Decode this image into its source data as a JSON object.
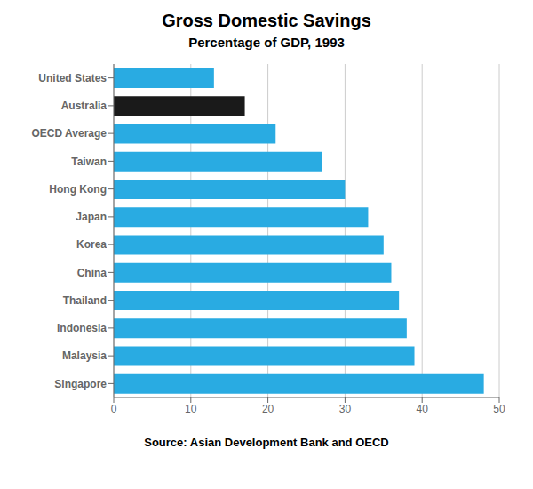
{
  "chart_data": {
    "type": "bar",
    "title": "Gross Domestic Savings",
    "subtitle": "Percentage of GDP, 1993",
    "source": "Source: Asian Development Bank and OECD",
    "orientation": "horizontal",
    "categories": [
      "United States",
      "Australia",
      "OECD Average",
      "Taiwan",
      "Hong Kong",
      "Japan",
      "Korea",
      "China",
      "Thailand",
      "Indonesia",
      "Malaysia",
      "Singapore"
    ],
    "values": [
      13,
      17,
      21,
      27,
      30,
      33,
      35,
      36,
      37,
      38,
      39,
      48
    ],
    "colors": [
      "#29abe2",
      "#1a1a1a",
      "#29abe2",
      "#29abe2",
      "#29abe2",
      "#29abe2",
      "#29abe2",
      "#29abe2",
      "#29abe2",
      "#29abe2",
      "#29abe2",
      "#29abe2"
    ],
    "xlim": [
      0,
      50
    ],
    "xticks": [
      0,
      10,
      20,
      30,
      40,
      50
    ],
    "grid": true
  }
}
